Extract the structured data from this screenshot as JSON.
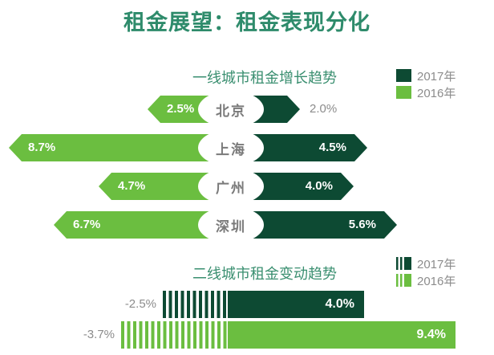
{
  "title": "租金展望：租金表现分化",
  "colors": {
    "title_green": "#2E8B6B",
    "subtitle_green": "#3A8F70",
    "dark_green_2017": "#0D4A33",
    "light_green_2016": "#6BBE40",
    "gray_text": "#8C8C8C",
    "city_text": "#7A7A7A",
    "background": "#FFFFFF"
  },
  "chart_data": [
    {
      "type": "bar",
      "title": "一线城市租金增长趋势",
      "orientation": "horizontal-diverging-from-center",
      "categories": [
        "北京",
        "上海",
        "广州",
        "深圳"
      ],
      "series": [
        {
          "name": "2017年",
          "color": "#0D4A33",
          "direction": "right",
          "values": [
            2.0,
            4.5,
            4.0,
            5.6
          ]
        },
        {
          "name": "2016年",
          "color": "#6BBE40",
          "direction": "left",
          "values": [
            2.5,
            8.7,
            4.7,
            6.7
          ]
        }
      ],
      "unit": "%",
      "legend_position": "top-right",
      "value_labels": "on bars (white), outside in gray when bar too short"
    },
    {
      "type": "bar",
      "title": "二线城市租金变动趋势",
      "orientation": "horizontal",
      "series": [
        {
          "name": "2017年",
          "color": "#0D4A33",
          "negative_value": -2.5,
          "positive_value": 4.0
        },
        {
          "name": "2016年",
          "color": "#6BBE40",
          "negative_value": -3.7,
          "positive_value": 9.4
        }
      ],
      "unit": "%",
      "legend_position": "top-right",
      "note": "negative values rendered as striped segments left of axis, positive as solid bars with white labels"
    }
  ]
}
